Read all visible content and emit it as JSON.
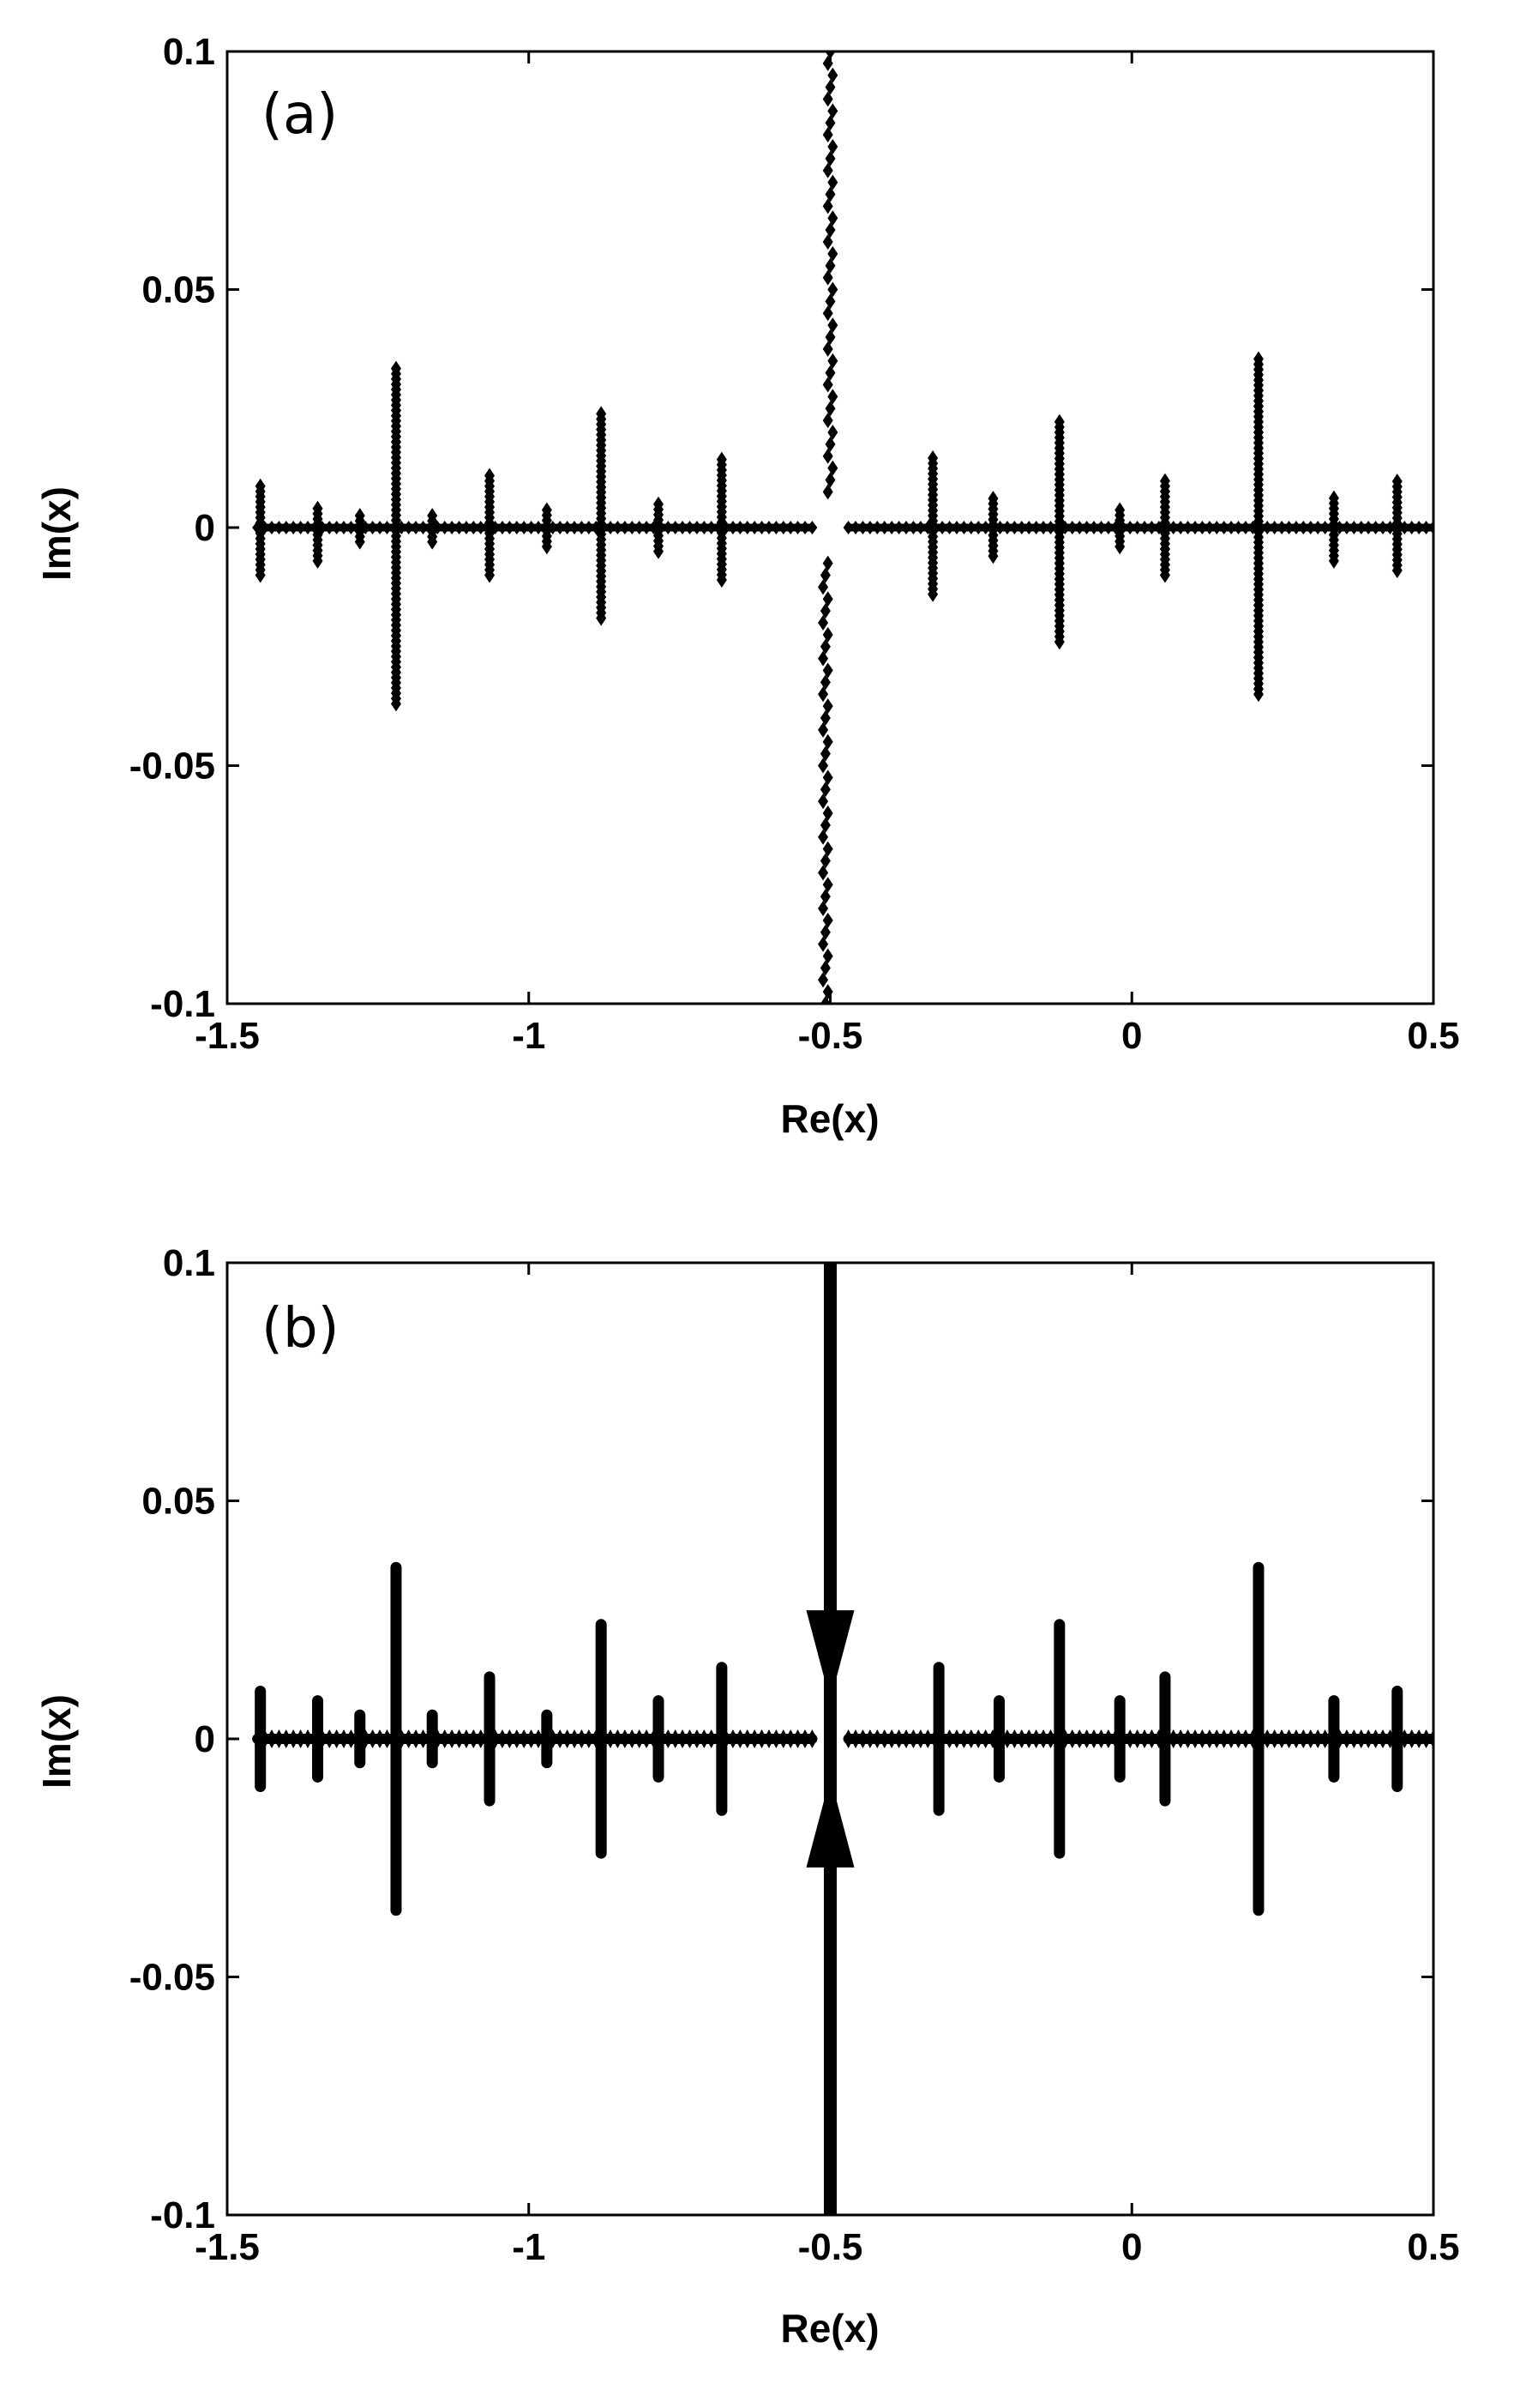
{
  "figure": {
    "panels": [
      {
        "label": "(a)",
        "xlabel": "Re(x)",
        "ylabel": "Im(x)"
      },
      {
        "label": "(b)",
        "xlabel": "Re(x)",
        "ylabel": "Im(x)"
      }
    ]
  },
  "chart_data": [
    {
      "type": "scatter",
      "title": "",
      "panel_label": "(a)",
      "xlabel": "Re(x)",
      "ylabel": "Im(x)",
      "xlim": [
        -1.5,
        0.5
      ],
      "ylim": [
        -0.1,
        0.1
      ],
      "xticks": [
        -1.5,
        -1,
        -0.5,
        0,
        0.5
      ],
      "xtick_labels": [
        "-1.5",
        "-1",
        "-0.5",
        "0",
        "0.5"
      ],
      "yticks": [
        -0.1,
        -0.05,
        0,
        0.05,
        0.1
      ],
      "ytick_labels": [
        "-0.1",
        "-0.05",
        "0",
        "0.05",
        "0.1"
      ],
      "grid": false,
      "marker": "diamond",
      "color": "#000000",
      "real_axis_band": {
        "x_ranges": [
          [
            -1.45,
            -0.53
          ],
          [
            -0.47,
            0.5
          ]
        ],
        "y": 0
      },
      "spikes": [
        {
          "x": -1.445,
          "y_max": 0.009,
          "y_min": -0.01
        },
        {
          "x": -1.35,
          "y_max": 0.004,
          "y_min": -0.007
        },
        {
          "x": -1.28,
          "y_max": 0.003,
          "y_min": -0.003
        },
        {
          "x": -1.22,
          "y_max": 0.034,
          "y_min": -0.037
        },
        {
          "x": -1.16,
          "y_max": 0.003,
          "y_min": -0.003
        },
        {
          "x": -1.065,
          "y_max": 0.011,
          "y_min": -0.01
        },
        {
          "x": -0.97,
          "y_max": 0.004,
          "y_min": -0.004
        },
        {
          "x": -0.88,
          "y_max": 0.024,
          "y_min": -0.019
        },
        {
          "x": -0.785,
          "y_max": 0.005,
          "y_min": -0.005
        },
        {
          "x": -0.68,
          "y_max": 0.015,
          "y_min": -0.011
        },
        {
          "x": -0.5,
          "y_max": 0.1,
          "y_min": -0.1
        },
        {
          "x": -0.33,
          "y_max": 0.015,
          "y_min": -0.014
        },
        {
          "x": -0.23,
          "y_max": 0.007,
          "y_min": -0.006
        },
        {
          "x": -0.12,
          "y_max": 0.023,
          "y_min": -0.024
        },
        {
          "x": -0.02,
          "y_max": 0.004,
          "y_min": -0.004
        },
        {
          "x": 0.055,
          "y_max": 0.01,
          "y_min": -0.01
        },
        {
          "x": 0.21,
          "y_max": 0.036,
          "y_min": -0.035
        },
        {
          "x": 0.335,
          "y_max": 0.007,
          "y_min": -0.007
        },
        {
          "x": 0.44,
          "y_max": 0.01,
          "y_min": -0.009
        }
      ]
    },
    {
      "type": "scatter",
      "title": "",
      "panel_label": "(b)",
      "xlabel": "Re(x)",
      "ylabel": "Im(x)",
      "xlim": [
        -1.5,
        0.5
      ],
      "ylim": [
        -0.1,
        0.1
      ],
      "xticks": [
        -1.5,
        -1,
        -0.5,
        0,
        0.5
      ],
      "xtick_labels": [
        "-1.5",
        "-1",
        "-0.5",
        "0",
        "0.5"
      ],
      "yticks": [
        -0.1,
        -0.05,
        0,
        0.05,
        0.1
      ],
      "ytick_labels": [
        "-0.1",
        "-0.05",
        "0",
        "0.05",
        "0.1"
      ],
      "grid": false,
      "marker": "diamond",
      "color": "#000000",
      "real_axis_band": {
        "x_ranges": [
          [
            -1.45,
            -0.53
          ],
          [
            -0.47,
            0.5
          ]
        ],
        "y": 0
      },
      "spikes": [
        {
          "x": -1.445,
          "y_max": 0.01,
          "y_min": -0.01
        },
        {
          "x": -1.35,
          "y_max": 0.008,
          "y_min": -0.008
        },
        {
          "x": -1.28,
          "y_max": 0.005,
          "y_min": -0.005
        },
        {
          "x": -1.22,
          "y_max": 0.036,
          "y_min": -0.036
        },
        {
          "x": -1.16,
          "y_max": 0.005,
          "y_min": -0.005
        },
        {
          "x": -1.065,
          "y_max": 0.013,
          "y_min": -0.013
        },
        {
          "x": -0.97,
          "y_max": 0.005,
          "y_min": -0.005
        },
        {
          "x": -0.88,
          "y_max": 0.024,
          "y_min": -0.024
        },
        {
          "x": -0.785,
          "y_max": 0.008,
          "y_min": -0.008
        },
        {
          "x": -0.68,
          "y_max": 0.015,
          "y_min": -0.015
        },
        {
          "x": -0.5,
          "y_max": 0.1,
          "y_min": -0.1
        },
        {
          "x": -0.32,
          "y_max": 0.015,
          "y_min": -0.015
        },
        {
          "x": -0.22,
          "y_max": 0.008,
          "y_min": -0.008
        },
        {
          "x": -0.12,
          "y_max": 0.024,
          "y_min": -0.024
        },
        {
          "x": -0.02,
          "y_max": 0.008,
          "y_min": -0.008
        },
        {
          "x": 0.055,
          "y_max": 0.013,
          "y_min": -0.013
        },
        {
          "x": 0.21,
          "y_max": 0.036,
          "y_min": -0.036
        },
        {
          "x": 0.335,
          "y_max": 0.008,
          "y_min": -0.008
        },
        {
          "x": 0.44,
          "y_max": 0.01,
          "y_min": -0.01
        }
      ]
    }
  ]
}
